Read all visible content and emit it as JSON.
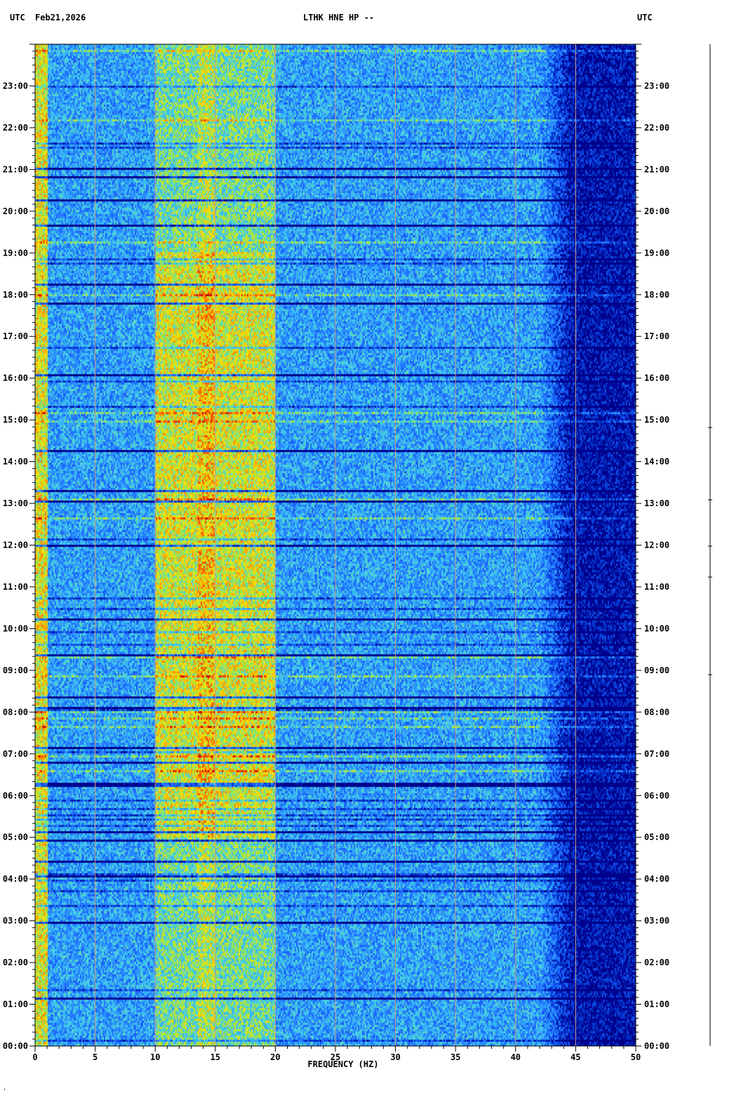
{
  "header": {
    "left_tz": "UTC",
    "date": "Feb21,2026",
    "title": "LTHK HNE HP --",
    "right_tz": "UTC"
  },
  "chart_data": {
    "type": "heatmap",
    "title": "LTHK HNE HP --",
    "xlabel": "FREQUENCY (HZ)",
    "ylabel": "",
    "xlim": [
      0,
      50
    ],
    "ylim_hours": [
      0,
      24
    ],
    "x_ticks": [
      0,
      5,
      10,
      15,
      20,
      25,
      30,
      35,
      40,
      45,
      50
    ],
    "y_ticks_left": [
      "00:00",
      "01:00",
      "02:00",
      "03:00",
      "04:00",
      "05:00",
      "06:00",
      "07:00",
      "08:00",
      "09:00",
      "10:00",
      "11:00",
      "12:00",
      "13:00",
      "14:00",
      "15:00",
      "16:00",
      "17:00",
      "18:00",
      "19:00",
      "20:00",
      "21:00",
      "22:00",
      "23:00"
    ],
    "y_ticks_right": [
      "00:00",
      "01:00",
      "02:00",
      "03:00",
      "04:00",
      "05:00",
      "06:00",
      "07:00",
      "08:00",
      "09:00",
      "10:00",
      "11:00",
      "12:00",
      "13:00",
      "14:00",
      "15:00",
      "16:00",
      "17:00",
      "18:00",
      "19:00",
      "20:00",
      "21:00",
      "22:00",
      "23:00"
    ],
    "gridlines_x": [
      5,
      10,
      15,
      20,
      25,
      30,
      35,
      40,
      45
    ],
    "colormap": [
      "#00008b",
      "#0033cc",
      "#1e64ff",
      "#2fa0ff",
      "#46d2e6",
      "#9be64b",
      "#ffe100",
      "#ff6400",
      "#c80000"
    ],
    "energy_band_hz": [
      10,
      20
    ],
    "lowfreq_band_hz": [
      0,
      1
    ],
    "rolloff_hz": 42,
    "grid_color": "#c8a082"
  },
  "footer_mark": "'"
}
